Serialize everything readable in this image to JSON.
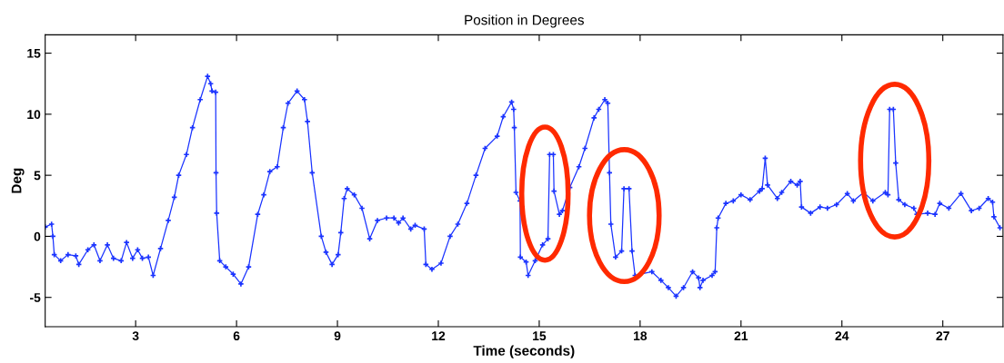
{
  "chart_data": {
    "type": "line",
    "title": "Position in Degrees",
    "xlabel": "Time (seconds)",
    "ylabel": "Deg",
    "xlim": [
      0.31,
      28.79
    ],
    "ylim": [
      -7.4,
      16.5
    ],
    "xticks": [
      3,
      6,
      9,
      12,
      15,
      18,
      21,
      24,
      27
    ],
    "yticks": [
      -5,
      0,
      5,
      10,
      15
    ],
    "grid": false,
    "legend": false,
    "marker": "cross",
    "line_style": "solid",
    "series": [
      {
        "color": "#1a33ff",
        "x": [
          0.31,
          0.5,
          0.54,
          0.58,
          0.77,
          0.99,
          1.22,
          1.31,
          1.58,
          1.76,
          1.94,
          2.16,
          2.34,
          2.57,
          2.73,
          2.91,
          3.06,
          3.2,
          3.38,
          3.52,
          3.74,
          3.97,
          4.15,
          4.28,
          4.51,
          4.69,
          4.92,
          5.14,
          5.23,
          5.27,
          5.38,
          5.39,
          5.41,
          5.5,
          5.68,
          5.9,
          6.13,
          6.36,
          6.63,
          6.81,
          6.99,
          7.21,
          7.39,
          7.53,
          7.8,
          8.02,
          8.11,
          8.25,
          8.52,
          8.66,
          8.84,
          9.02,
          9.1,
          9.2,
          9.29,
          9.5,
          9.73,
          9.96,
          10.19,
          10.46,
          10.68,
          10.82,
          10.95,
          11.18,
          11.31,
          11.58,
          11.63,
          11.81,
          12.08,
          12.35,
          12.58,
          12.85,
          13.12,
          13.39,
          13.75,
          13.93,
          14.18,
          14.24,
          14.26,
          14.31,
          14.43,
          14.44,
          14.61,
          14.67,
          14.88,
          15.1,
          15.26,
          15.31,
          15.42,
          15.44,
          15.6,
          15.69,
          15.91,
          16.18,
          16.36,
          16.63,
          16.77,
          16.95,
          17.04,
          17.09,
          17.13,
          17.27,
          17.45,
          17.52,
          17.67,
          17.76,
          17.85,
          18.35,
          18.62,
          18.84,
          19.07,
          19.29,
          19.56,
          19.74,
          19.78,
          19.87,
          20.14,
          20.23,
          20.28,
          20.32,
          20.55,
          20.77,
          21.0,
          21.27,
          21.55,
          21.63,
          21.72,
          21.79,
          22.08,
          22.21,
          22.48,
          22.67,
          22.76,
          22.8,
          23.07,
          23.35,
          23.57,
          23.84,
          24.16,
          24.34,
          24.65,
          24.92,
          25.29,
          25.37,
          25.42,
          25.53,
          25.6,
          25.69,
          25.87,
          26.14,
          26.23,
          26.55,
          26.77,
          26.91,
          27.18,
          27.54,
          27.85,
          28.08,
          28.35,
          28.48,
          28.52,
          28.7
        ],
        "values": [
          0.77,
          1.0,
          0.0,
          -1.5,
          -2.0,
          -1.5,
          -1.6,
          -2.3,
          -1.1,
          -0.7,
          -2.0,
          -0.7,
          -1.8,
          -2.0,
          -0.5,
          -1.8,
          -1.1,
          -1.8,
          -1.7,
          -3.2,
          -1.0,
          1.3,
          3.2,
          5.0,
          6.7,
          8.9,
          11.2,
          13.1,
          12.5,
          11.9,
          11.8,
          5.2,
          1.9,
          -2.0,
          -2.5,
          -3.1,
          -3.9,
          -2.5,
          1.8,
          3.4,
          5.3,
          5.7,
          8.9,
          10.9,
          11.9,
          11.2,
          9.4,
          5.2,
          0.0,
          -1.3,
          -2.3,
          -1.5,
          0.3,
          3.1,
          3.9,
          3.4,
          2.3,
          -0.2,
          1.3,
          1.5,
          1.5,
          1.1,
          1.5,
          0.6,
          0.9,
          0.6,
          -2.3,
          -2.7,
          -2.2,
          0.0,
          1.0,
          2.7,
          5.0,
          7.2,
          8.2,
          9.8,
          11.0,
          10.4,
          8.9,
          3.6,
          2.9,
          -1.7,
          -2.1,
          -3.2,
          -2.0,
          -0.7,
          -0.2,
          6.7,
          6.7,
          3.7,
          1.8,
          2.1,
          4.0,
          5.7,
          7.2,
          9.7,
          10.4,
          11.2,
          10.9,
          5.2,
          1.0,
          -1.7,
          -1.2,
          3.9,
          3.9,
          -1.2,
          -3.2,
          -2.9,
          -3.6,
          -4.2,
          -4.9,
          -4.2,
          -2.9,
          -3.4,
          -4.2,
          -3.6,
          -3.2,
          -2.9,
          0.7,
          1.5,
          2.7,
          2.9,
          3.4,
          3.0,
          3.7,
          3.9,
          6.4,
          4.2,
          3.1,
          3.6,
          4.5,
          4.2,
          4.5,
          2.4,
          1.9,
          2.4,
          2.3,
          2.6,
          3.5,
          2.9,
          3.6,
          2.9,
          3.6,
          3.4,
          10.4,
          10.4,
          6.0,
          3.0,
          2.6,
          2.3,
          1.8,
          1.9,
          1.8,
          2.7,
          2.3,
          3.5,
          2.1,
          2.3,
          3.1,
          2.8,
          1.6,
          0.7
        ]
      }
    ]
  }
}
